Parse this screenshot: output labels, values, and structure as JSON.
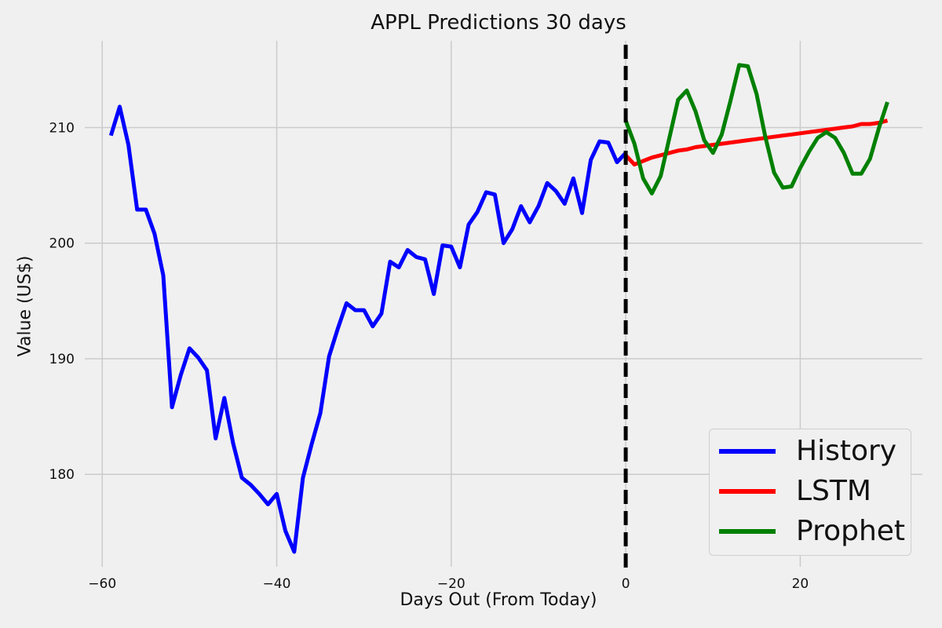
{
  "chart_data": {
    "type": "line",
    "title": "APPL Predictions 30 days",
    "xlabel": "Days Out (From Today)",
    "ylabel": "Value (US$)",
    "xlim": [
      -62,
      34
    ],
    "ylim": [
      172,
      217.5
    ],
    "xticks": [
      -60,
      -40,
      -20,
      0,
      20
    ],
    "xtick_labels": [
      "−60",
      "−40",
      "−20",
      "0",
      "20"
    ],
    "yticks": [
      180,
      190,
      200,
      210
    ],
    "ytick_labels": [
      "180",
      "190",
      "200",
      "210"
    ],
    "grid": true,
    "legend_position": "lower-right",
    "vline": {
      "x": 0,
      "style": "dashed",
      "color": "#000000"
    },
    "series": [
      {
        "name": "History",
        "color": "#0000ff",
        "x": [
          -59,
          -58,
          -57,
          -56,
          -55,
          -54,
          -53,
          -52,
          -51,
          -50,
          -49,
          -48,
          -47,
          -46,
          -45,
          -44,
          -43,
          -42,
          -41,
          -40,
          -39,
          -38,
          -37,
          -36,
          -35,
          -34,
          -33,
          -32,
          -31,
          -30,
          -29,
          -28,
          -27,
          -26,
          -25,
          -24,
          -23,
          -22,
          -21,
          -20,
          -19,
          -18,
          -17,
          -16,
          -15,
          -14,
          -13,
          -12,
          -11,
          -10,
          -9,
          -8,
          -7,
          -6,
          -5,
          -4,
          -3,
          -2,
          -1,
          0
        ],
        "values": [
          209.3,
          211.8,
          208.5,
          202.9,
          202.9,
          200.8,
          197.2,
          185.8,
          188.6,
          190.9,
          190.1,
          189.0,
          183.1,
          186.6,
          182.7,
          179.7,
          179.1,
          178.3,
          177.4,
          178.3,
          175.1,
          173.3,
          179.7,
          182.6,
          185.3,
          190.2,
          192.6,
          194.8,
          194.2,
          194.2,
          192.8,
          193.9,
          198.4,
          197.9,
          199.4,
          198.8,
          198.6,
          195.6,
          199.8,
          199.7,
          197.9,
          201.6,
          202.7,
          204.4,
          204.2,
          200.0,
          201.2,
          203.2,
          201.8,
          203.2,
          205.2,
          204.5,
          203.4,
          205.6,
          202.6,
          207.2,
          208.8,
          208.7,
          207.0,
          207.8
        ]
      },
      {
        "name": "LSTM",
        "color": "#ff0000",
        "x": [
          0,
          1,
          2,
          3,
          4,
          5,
          6,
          7,
          8,
          9,
          10,
          11,
          12,
          13,
          14,
          15,
          16,
          17,
          18,
          19,
          20,
          21,
          22,
          23,
          24,
          25,
          26,
          27,
          28,
          29,
          30
        ],
        "values": [
          207.6,
          206.8,
          207.1,
          207.4,
          207.6,
          207.8,
          208.0,
          208.1,
          208.3,
          208.4,
          208.5,
          208.6,
          208.7,
          208.8,
          208.9,
          209.0,
          209.1,
          209.2,
          209.3,
          209.4,
          209.5,
          209.6,
          209.7,
          209.8,
          209.9,
          210.0,
          210.1,
          210.3,
          210.3,
          210.4,
          210.6
        ]
      },
      {
        "name": "Prophet",
        "color": "#008000",
        "x": [
          0,
          1,
          2,
          3,
          4,
          5,
          6,
          7,
          8,
          9,
          10,
          11,
          12,
          13,
          14,
          15,
          16,
          17,
          18,
          19,
          20,
          21,
          22,
          23,
          24,
          25,
          26,
          27,
          28,
          29,
          30
        ],
        "values": [
          210.6,
          208.6,
          205.6,
          204.3,
          205.8,
          209.1,
          212.4,
          213.2,
          211.4,
          208.9,
          207.8,
          209.4,
          212.3,
          215.4,
          215.3,
          212.9,
          209.2,
          206.1,
          204.8,
          204.9,
          206.5,
          207.9,
          209.1,
          209.6,
          209.1,
          207.8,
          206.0,
          206.0,
          207.3,
          209.9,
          212.2
        ]
      }
    ]
  }
}
